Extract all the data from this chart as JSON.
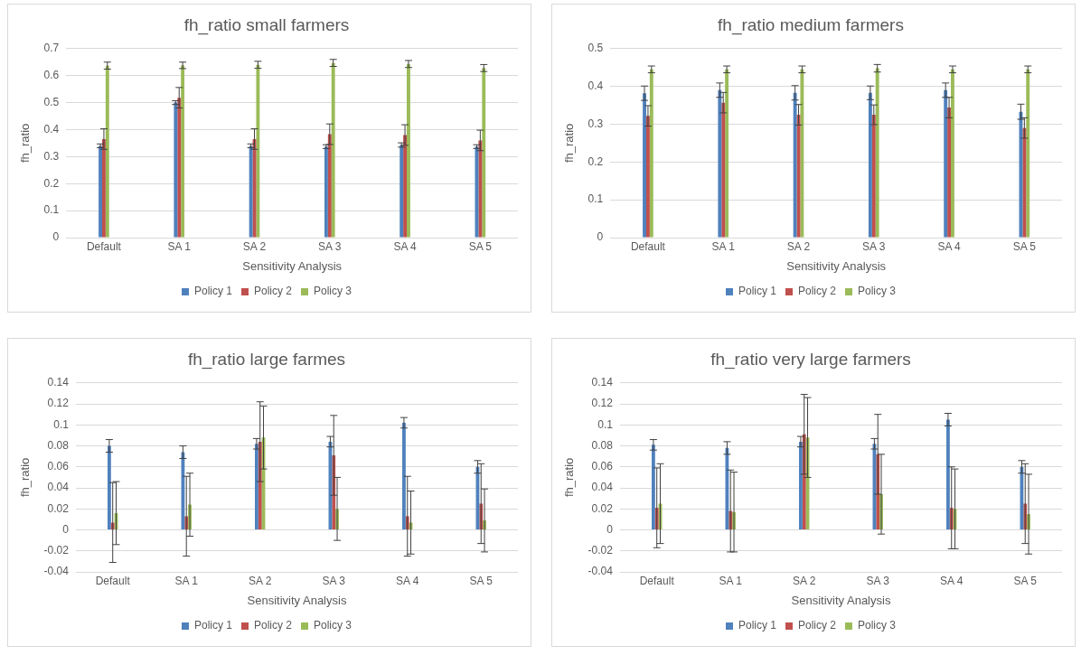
{
  "chart_data": [
    {
      "type": "bar",
      "title": "fh_ratio small farmers",
      "xlabel": "Sensitivity Analysis",
      "ylabel": "fh_ratio",
      "categories": [
        "Default",
        "SA 1",
        "SA 2",
        "SA 3",
        "SA 4",
        "SA 5"
      ],
      "ylim": [
        0,
        0.7
      ],
      "yticks": [
        0,
        0.1,
        0.2,
        0.3,
        0.4,
        0.5,
        0.6,
        0.7
      ],
      "grid": "y",
      "legend": "bottom",
      "series": [
        {
          "name": "Policy 1",
          "color": "#4f81bd",
          "values": [
            0.34,
            0.5,
            0.34,
            0.337,
            0.343,
            0.337
          ],
          "errors": [
            0.007,
            0.007,
            0.007,
            0.007,
            0.008,
            0.007
          ]
        },
        {
          "name": "Policy 2",
          "color": "#c0504d",
          "values": [
            0.365,
            0.518,
            0.365,
            0.383,
            0.38,
            0.36
          ],
          "errors": [
            0.038,
            0.038,
            0.038,
            0.038,
            0.038,
            0.038
          ]
        },
        {
          "name": "Policy 3",
          "color": "#9bbb59",
          "values": [
            0.637,
            0.638,
            0.64,
            0.647,
            0.643,
            0.628
          ],
          "errors": [
            0.013,
            0.012,
            0.013,
            0.013,
            0.013,
            0.013
          ]
        }
      ]
    },
    {
      "type": "bar",
      "title": "fh_ratio medium farmers",
      "xlabel": "Sensitivity Analysis",
      "ylabel": "fh_ratio",
      "categories": [
        "Default",
        "SA 1",
        "SA 2",
        "SA 3",
        "SA 4",
        "SA 5"
      ],
      "ylim": [
        0,
        0.5
      ],
      "yticks": [
        0,
        0.1,
        0.2,
        0.3,
        0.4,
        0.5
      ],
      "grid": "y",
      "legend": "bottom",
      "series": [
        {
          "name": "Policy 1",
          "color": "#4f81bd",
          "values": [
            0.382,
            0.39,
            0.383,
            0.383,
            0.39,
            0.333
          ],
          "errors": [
            0.019,
            0.019,
            0.019,
            0.018,
            0.019,
            0.02
          ]
        },
        {
          "name": "Policy 2",
          "color": "#c0504d",
          "values": [
            0.322,
            0.357,
            0.325,
            0.325,
            0.344,
            0.29
          ],
          "errors": [
            0.027,
            0.027,
            0.027,
            0.026,
            0.027,
            0.027
          ]
        },
        {
          "name": "Policy 3",
          "color": "#9bbb59",
          "values": [
            0.445,
            0.445,
            0.445,
            0.448,
            0.445,
            0.445
          ],
          "errors": [
            0.009,
            0.009,
            0.009,
            0.01,
            0.009,
            0.009
          ]
        }
      ]
    },
    {
      "type": "bar",
      "title": "fh_ratio large farmes",
      "xlabel": "Sensitivity Analysis",
      "ylabel": "fh_ratio",
      "categories": [
        "Default",
        "SA 1",
        "SA 2",
        "SA 3",
        "SA 4",
        "SA 5"
      ],
      "ylim": [
        -0.04,
        0.14
      ],
      "yticks": [
        -0.04,
        -0.02,
        0,
        0.02,
        0.04,
        0.06,
        0.08,
        0.1,
        0.12,
        0.14
      ],
      "grid": "y",
      "legend": "bottom",
      "series": [
        {
          "name": "Policy 1",
          "color": "#4f81bd",
          "values": [
            0.08,
            0.074,
            0.082,
            0.084,
            0.102,
            0.06
          ],
          "errors": [
            0.006,
            0.006,
            0.005,
            0.005,
            0.005,
            0.006
          ]
        },
        {
          "name": "Policy 2",
          "color": "#c0504d",
          "values": [
            0.007,
            0.013,
            0.084,
            0.071,
            0.013,
            0.025
          ],
          "errors": [
            0.038,
            0.038,
            0.038,
            0.038,
            0.038,
            0.038
          ]
        },
        {
          "name": "Policy 3",
          "color": "#9bbb59",
          "values": [
            0.016,
            0.024,
            0.088,
            0.02,
            0.007,
            0.009
          ],
          "errors": [
            0.03,
            0.03,
            0.03,
            0.03,
            0.03,
            0.03
          ]
        }
      ]
    },
    {
      "type": "bar",
      "title": "fh_ratio very large farmers",
      "xlabel": "Sensitivity Analysis",
      "ylabel": "fh_ratio",
      "categories": [
        "Default",
        "SA 1",
        "SA 2",
        "SA 3",
        "SA 4",
        "SA 5"
      ],
      "ylim": [
        -0.04,
        0.14
      ],
      "yticks": [
        -0.04,
        -0.02,
        0,
        0.02,
        0.04,
        0.06,
        0.08,
        0.1,
        0.12,
        0.14
      ],
      "grid": "y",
      "legend": "bottom",
      "series": [
        {
          "name": "Policy 1",
          "color": "#4f81bd",
          "values": [
            0.081,
            0.078,
            0.084,
            0.082,
            0.105,
            0.06
          ],
          "errors": [
            0.005,
            0.006,
            0.005,
            0.005,
            0.006,
            0.006
          ]
        },
        {
          "name": "Policy 2",
          "color": "#c0504d",
          "values": [
            0.021,
            0.018,
            0.091,
            0.072,
            0.021,
            0.025
          ],
          "errors": [
            0.038,
            0.039,
            0.038,
            0.038,
            0.039,
            0.038
          ]
        },
        {
          "name": "Policy 3",
          "color": "#9bbb59",
          "values": [
            0.025,
            0.017,
            0.088,
            0.034,
            0.02,
            0.015
          ],
          "errors": [
            0.038,
            0.038,
            0.038,
            0.038,
            0.038,
            0.038
          ]
        }
      ]
    }
  ]
}
